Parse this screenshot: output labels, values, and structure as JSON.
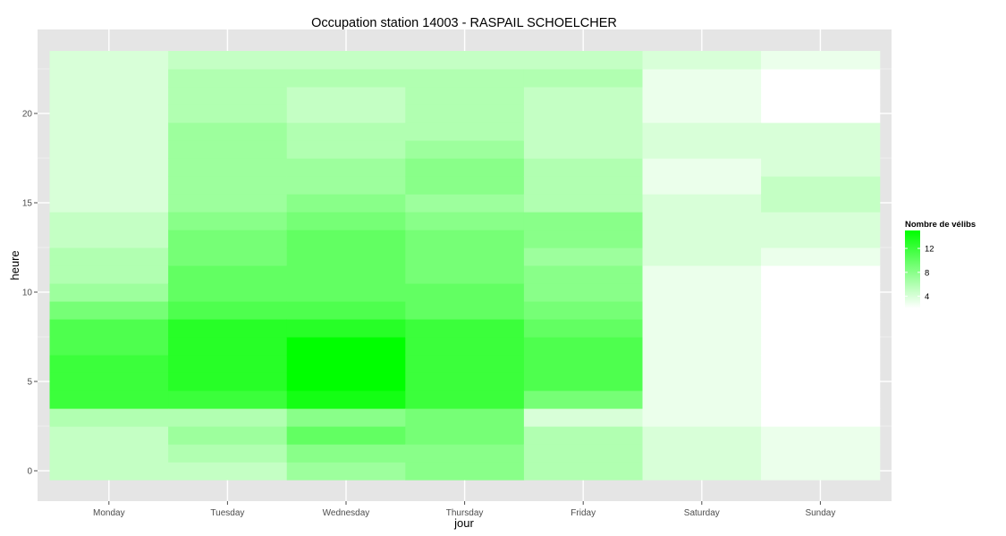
{
  "chart_data": {
    "type": "heatmap",
    "title": "Occupation station 14003 - RASPAIL SCHOELCHER",
    "xlabel": "jour",
    "ylabel": "heure",
    "x": [
      "Monday",
      "Tuesday",
      "Wednesday",
      "Thursday",
      "Friday",
      "Saturday",
      "Sunday"
    ],
    "y": [
      0,
      1,
      2,
      3,
      4,
      5,
      6,
      7,
      8,
      9,
      10,
      11,
      12,
      13,
      14,
      15,
      16,
      17,
      18,
      19,
      20,
      21,
      22,
      23
    ],
    "ylim": [
      -0.5,
      23.5
    ],
    "yticks": [
      0,
      5,
      10,
      15,
      20
    ],
    "legend": {
      "title": "Nombre de vélibs",
      "placement": "right",
      "breaks": [
        4,
        8,
        12
      ],
      "range": [
        2,
        15
      ],
      "color_low": "#ffffff",
      "color_high": "#00ff00"
    },
    "panel_background": "#e5e5e5",
    "grid": true,
    "values": [
      [
        5,
        5,
        5,
        6,
        12,
        12,
        12,
        11,
        11,
        9,
        7,
        6,
        6,
        5,
        5,
        4,
        4,
        4,
        4,
        4,
        4,
        4,
        4,
        4
      ],
      [
        5,
        6,
        7,
        6,
        12,
        13,
        13,
        13,
        13,
        11,
        10,
        10,
        9,
        9,
        8,
        7,
        7,
        7,
        7,
        7,
        6,
        6,
        6,
        5
      ],
      [
        7,
        8,
        10,
        8,
        14,
        15,
        15,
        15,
        13,
        11,
        10,
        10,
        10,
        10,
        9,
        8,
        7,
        7,
        6,
        6,
        5,
        5,
        6,
        5
      ],
      [
        8,
        8,
        9,
        9,
        12,
        12,
        12,
        12,
        12,
        10,
        10,
        9,
        9,
        9,
        8,
        7,
        8,
        8,
        7,
        6,
        6,
        6,
        6,
        5
      ],
      [
        6,
        6,
        6,
        4,
        9,
        11,
        11,
        11,
        10,
        9,
        8,
        8,
        7,
        8,
        8,
        6,
        6,
        6,
        5,
        5,
        5,
        5,
        6,
        5
      ],
      [
        4,
        4,
        4,
        3,
        3,
        3,
        3,
        3,
        3,
        3,
        3,
        3,
        4,
        4,
        4,
        4,
        3,
        3,
        4,
        4,
        3,
        3,
        3,
        4
      ],
      [
        3,
        3,
        3,
        2,
        2,
        2,
        2,
        2,
        2,
        2,
        2,
        2,
        3,
        4,
        4,
        5,
        5,
        4,
        4,
        4,
        2,
        2,
        2,
        3
      ]
    ]
  }
}
